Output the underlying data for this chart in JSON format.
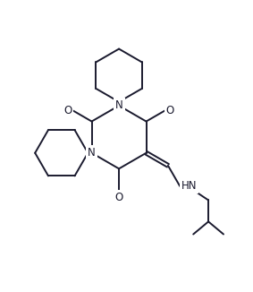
{
  "line_color": "#1a1a2e",
  "line_width": 1.4,
  "figsize": [
    2.83,
    3.26
  ],
  "dpi": 100,
  "xlim": [
    0,
    10
  ],
  "ylim": [
    0,
    11.5
  ]
}
